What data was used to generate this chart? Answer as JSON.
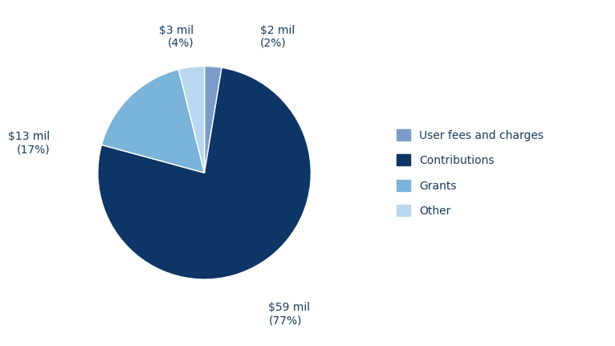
{
  "labels": [
    "User fees and charges",
    "Contributions",
    "Grants",
    "Other"
  ],
  "values": [
    2,
    59,
    13,
    3
  ],
  "percentages": [
    "2%",
    "77%",
    "17%",
    "4%"
  ],
  "amounts": [
    "$2 mil",
    "$59 mil",
    "$13 mil",
    "$3 mil"
  ],
  "colors": [
    "#7b9cc8",
    "#0d3566",
    "#7ab4d8",
    "#b8d8f0"
  ],
  "legend_labels": [
    "User fees and charges",
    "Contributions",
    "Grants",
    "Other"
  ],
  "background_color": "#ffffff",
  "text_color": "#1a3a5c",
  "font_size_label": 10,
  "startangle": 90
}
